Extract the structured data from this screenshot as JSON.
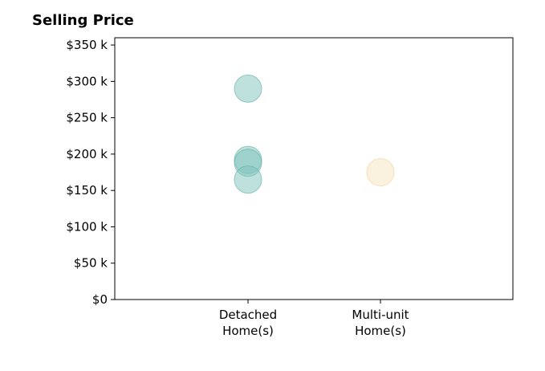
{
  "chart_data": {
    "type": "scatter",
    "title": "Selling Price",
    "xlabel": "",
    "ylabel": "",
    "categories": [
      [
        "Detached",
        "Home(s)"
      ],
      [
        "Multi-unit",
        "Home(s)"
      ]
    ],
    "ylim": [
      0,
      360000
    ],
    "yticks": [
      0,
      50000,
      100000,
      150000,
      200000,
      250000,
      300000,
      350000
    ],
    "ytick_labels": [
      "$0",
      "$50 k",
      "$100 k",
      "$150 k",
      "$200 k",
      "$250 k",
      "$300 k",
      "$350 k"
    ],
    "grid": false,
    "series": [
      {
        "category_index": 0,
        "color": "#7fc4bc",
        "stroke": "#5aaea5",
        "values": [
          290000,
          192000,
          188000,
          165000
        ]
      },
      {
        "category_index": 1,
        "color": "#f5e3bd",
        "stroke": "#ecd29c",
        "values": [
          175000
        ]
      }
    ]
  }
}
